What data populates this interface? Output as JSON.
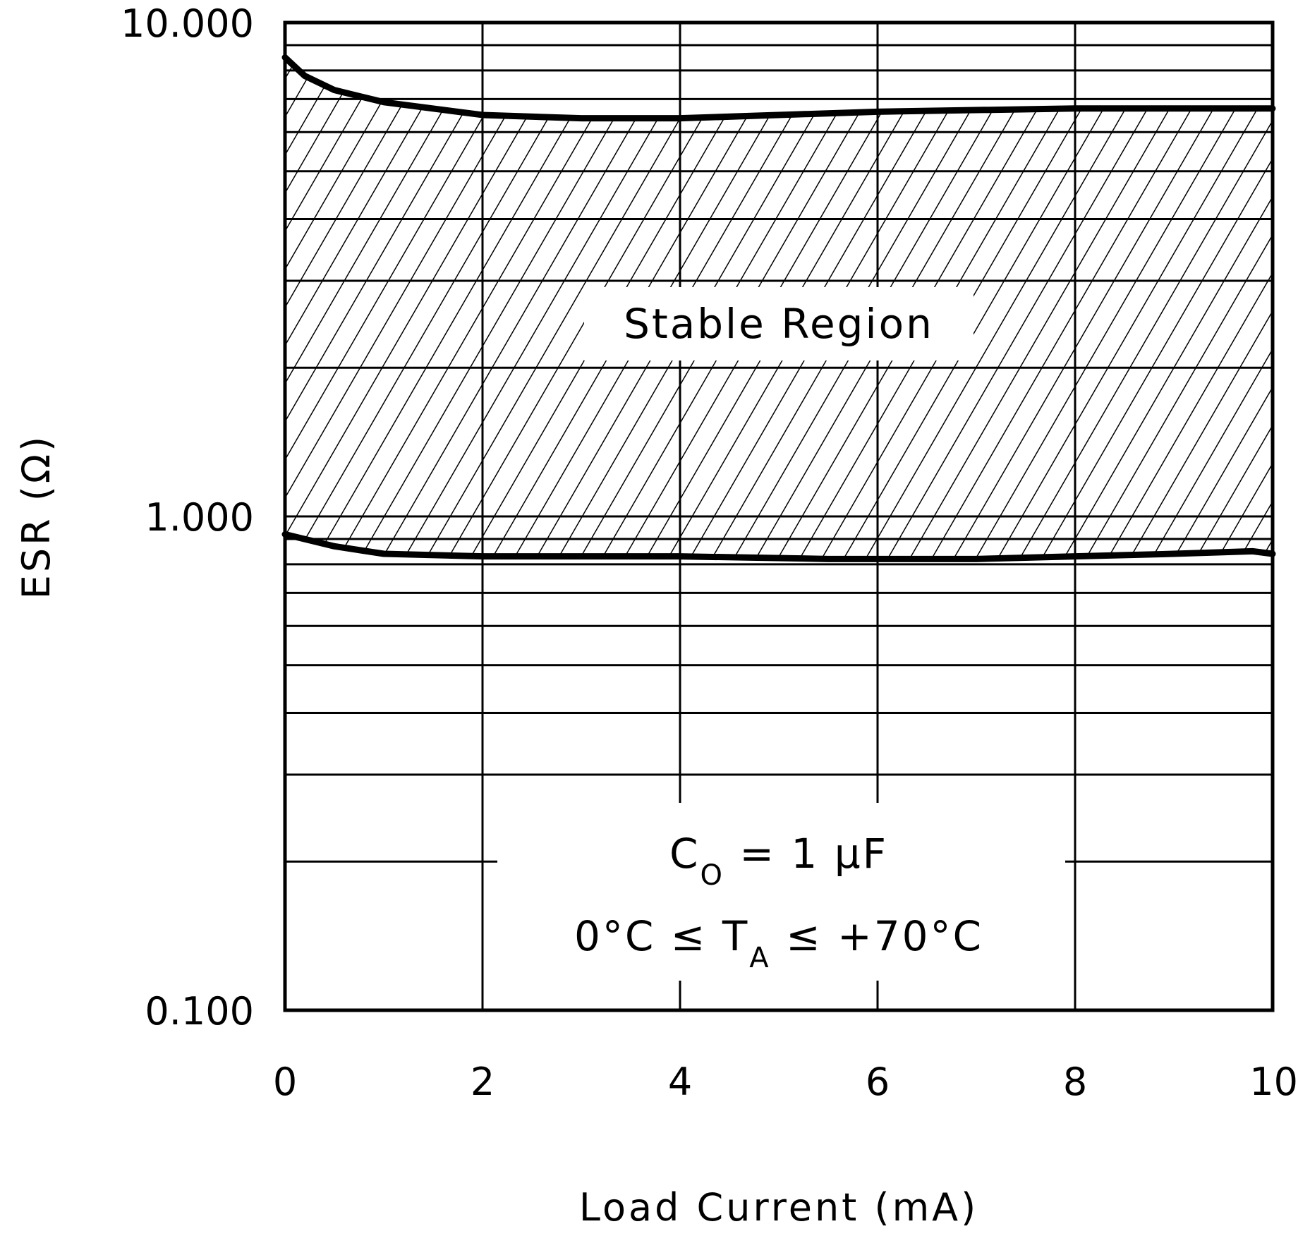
{
  "chart_data": {
    "type": "area",
    "xlabel": "Load Current (mA)",
    "ylabel": "ESR (Ω)",
    "xlim": [
      0,
      10
    ],
    "ylim": [
      0.1,
      10
    ],
    "yscale": "log",
    "x_ticks": [
      "0",
      "2",
      "4",
      "6",
      "8",
      "10"
    ],
    "y_ticks": [
      "0.100",
      "1.000",
      "10.000"
    ],
    "grid": true,
    "region_label": "Stable Region",
    "series": [
      {
        "name": "",
        "x": [
          0,
          0.2,
          0.5,
          1,
          2,
          3,
          4,
          6,
          8,
          9.5,
          10
        ],
        "values": [
          8.5,
          7.8,
          7.3,
          6.9,
          6.5,
          6.4,
          6.4,
          6.6,
          6.7,
          6.7,
          6.7
        ]
      },
      {
        "name": "",
        "x": [
          0,
          0.5,
          1,
          2,
          4,
          5.5,
          7,
          8,
          9,
          9.8,
          10
        ],
        "values": [
          0.92,
          0.87,
          0.84,
          0.83,
          0.83,
          0.82,
          0.82,
          0.83,
          0.84,
          0.85,
          0.84
        ]
      }
    ],
    "annotations": {
      "line1": {
        "prefix": "C",
        "sub": "O",
        "suffix": " = 1 μF"
      },
      "line2": {
        "prefix": "0°C ≤ T",
        "sub": "A",
        "suffix": " ≤ +70°C"
      }
    }
  }
}
